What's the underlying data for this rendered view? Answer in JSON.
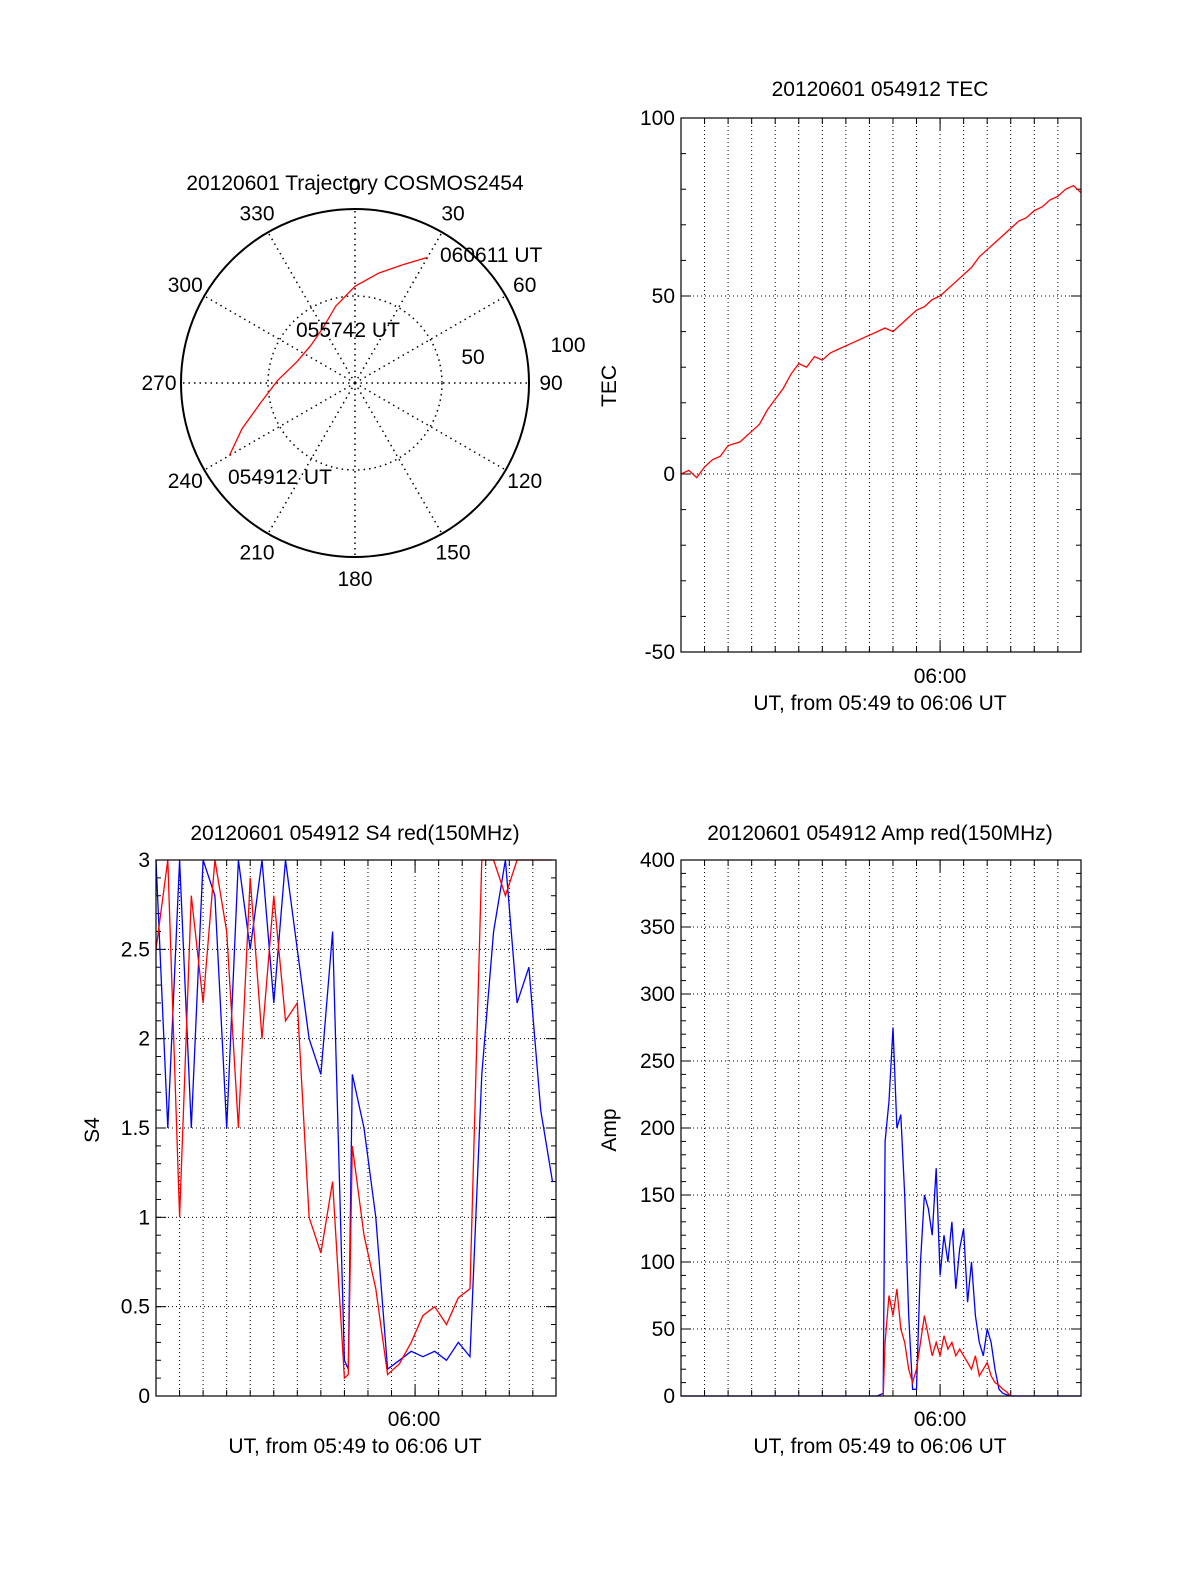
{
  "colors": {
    "red": "#ff0000",
    "blue": "#0000ff",
    "axis": "#000000",
    "grid": "#000000"
  },
  "chart_data": [
    {
      "type": "polar",
      "title": "20120601 Trajectory COSMOS2454",
      "azimuth_ticks": [
        0,
        30,
        60,
        90,
        120,
        150,
        180,
        210,
        240,
        270,
        300,
        330
      ],
      "radius_labels": [
        "50",
        "100"
      ],
      "series": [
        {
          "color": "red",
          "points": [
            {
              "az": 240,
              "el": 15
            },
            {
              "az": 248,
              "el": 27
            },
            {
              "az": 258,
              "el": 40
            },
            {
              "az": 272,
              "el": 50
            },
            {
              "az": 290,
              "el": 58
            },
            {
              "az": 310,
              "el": 60
            },
            {
              "az": 330,
              "el": 57
            },
            {
              "az": 346,
              "el": 49
            },
            {
              "az": 360,
              "el": 40
            },
            {
              "az": 372,
              "el": 32
            },
            {
              "az": 382,
              "el": 24
            },
            {
              "az": 390,
              "el": 15
            }
          ]
        }
      ],
      "annotations": [
        {
          "text": "060611 UT",
          "az": 30,
          "el": 15
        },
        {
          "text": "055742 UT",
          "az": 325,
          "el": 80
        },
        {
          "text": "054912 UT",
          "az": 240,
          "el": 15
        }
      ]
    },
    {
      "type": "line",
      "title": "20120601 054912 TEC",
      "xlabel": "UT, from 05:49 to 06:06 UT",
      "ylabel": "TEC",
      "xlim": [
        0,
        1019
      ],
      "ylim": [
        -50,
        100
      ],
      "yticks": [
        -50,
        0,
        50,
        100
      ],
      "xticks": [
        {
          "t": 660,
          "label": "06:00"
        }
      ],
      "grid": true,
      "series": [
        {
          "color": "red",
          "x": [
            0,
            20,
            40,
            60,
            80,
            100,
            120,
            150,
            180,
            200,
            220,
            240,
            260,
            280,
            300,
            320,
            340,
            360,
            380,
            400,
            420,
            440,
            460,
            480,
            500,
            520,
            540,
            560,
            580,
            600,
            620,
            640,
            660,
            680,
            700,
            720,
            740,
            760,
            780,
            800,
            820,
            840,
            860,
            880,
            900,
            920,
            940,
            960,
            980,
            1000,
            1019
          ],
          "y": [
            0,
            1,
            -1,
            2,
            4,
            5,
            8,
            9,
            12,
            14,
            18,
            21,
            24,
            28,
            31,
            30,
            33,
            32,
            34,
            35,
            36,
            37,
            38,
            39,
            40,
            41,
            40,
            42,
            44,
            46,
            47,
            49,
            50,
            52,
            54,
            56,
            58,
            61,
            63,
            65,
            67,
            69,
            71,
            72,
            74,
            75,
            77,
            78,
            80,
            81,
            79
          ]
        }
      ]
    },
    {
      "type": "line",
      "title": "20120601 054912 S4 red(150MHz)",
      "xlabel": "UT, from 05:49 to 06:06 UT",
      "ylabel": "S4",
      "xlim": [
        0,
        1019
      ],
      "ylim": [
        0,
        3
      ],
      "yticks": [
        "0",
        "0.5",
        "1",
        "1.5",
        "2",
        "2.5",
        "3"
      ],
      "xticks": [
        {
          "t": 660,
          "label": "06:00"
        }
      ],
      "grid": true,
      "series": [
        {
          "color": "blue",
          "x": [
            0,
            30,
            60,
            90,
            120,
            150,
            180,
            210,
            240,
            270,
            300,
            330,
            360,
            390,
            420,
            450,
            480,
            490,
            500,
            530,
            560,
            590,
            620,
            650,
            680,
            710,
            740,
            770,
            800,
            830,
            860,
            890,
            920,
            950,
            980,
            1010
          ],
          "y": [
            3,
            1.5,
            3,
            1.5,
            3,
            2.8,
            1.5,
            3,
            2.5,
            3,
            2.2,
            3,
            2.5,
            2.0,
            1.8,
            2.6,
            0.2,
            0.15,
            1.8,
            1.5,
            1.0,
            0.15,
            0.2,
            0.25,
            0.22,
            0.25,
            0.2,
            0.3,
            0.22,
            1.8,
            2.6,
            3.0,
            2.2,
            2.4,
            1.6,
            1.2
          ]
        },
        {
          "color": "red",
          "x": [
            0,
            30,
            60,
            90,
            120,
            150,
            180,
            210,
            240,
            270,
            300,
            330,
            360,
            390,
            420,
            450,
            480,
            490,
            500,
            530,
            560,
            590,
            620,
            650,
            680,
            710,
            740,
            770,
            800,
            830,
            860,
            890,
            920,
            950,
            980,
            1010
          ],
          "y": [
            2.5,
            3,
            1.0,
            2.8,
            2.2,
            3,
            2.6,
            1.5,
            2.9,
            2.0,
            2.8,
            2.1,
            2.2,
            1.0,
            0.8,
            1.2,
            0.1,
            0.12,
            1.4,
            0.9,
            0.6,
            0.12,
            0.18,
            0.3,
            0.45,
            0.5,
            0.4,
            0.55,
            0.6,
            3.0,
            3.0,
            2.8,
            3.0,
            3.0,
            3.0,
            3.0
          ]
        }
      ]
    },
    {
      "type": "line",
      "title": "20120601 054912 Amp red(150MHz)",
      "xlabel": "UT, from 05:49 to 06:06 UT",
      "ylabel": "Amp",
      "xlim": [
        0,
        1019
      ],
      "ylim": [
        0,
        400
      ],
      "yticks": [
        0,
        50,
        100,
        150,
        200,
        250,
        300,
        350,
        400
      ],
      "xticks": [
        {
          "t": 660,
          "label": "06:00"
        }
      ],
      "grid": true,
      "series": [
        {
          "color": "blue",
          "x": [
            0,
            100,
            200,
            300,
            400,
            500,
            515,
            520,
            530,
            540,
            550,
            560,
            570,
            580,
            590,
            600,
            610,
            620,
            630,
            640,
            650,
            660,
            670,
            680,
            690,
            700,
            710,
            720,
            730,
            740,
            750,
            760,
            770,
            780,
            790,
            800,
            810,
            820,
            830,
            840,
            860,
            900,
            1000,
            1019
          ],
          "y": [
            0,
            0,
            0,
            0,
            0,
            0,
            2,
            190,
            220,
            275,
            200,
            210,
            150,
            60,
            5,
            5,
            100,
            150,
            140,
            120,
            170,
            90,
            120,
            100,
            130,
            80,
            110,
            125,
            70,
            100,
            60,
            40,
            30,
            50,
            40,
            20,
            5,
            2,
            1,
            0,
            0,
            0,
            0,
            0
          ]
        },
        {
          "color": "red",
          "x": [
            515,
            520,
            530,
            540,
            550,
            560,
            570,
            580,
            590,
            600,
            610,
            620,
            630,
            640,
            650,
            660,
            670,
            680,
            690,
            700,
            710,
            720,
            730,
            740,
            750,
            760,
            770,
            780,
            790,
            800,
            810,
            820,
            830,
            840
          ],
          "y": [
            0,
            40,
            75,
            60,
            80,
            50,
            40,
            20,
            10,
            20,
            40,
            60,
            45,
            30,
            40,
            30,
            45,
            35,
            40,
            30,
            35,
            30,
            25,
            20,
            30,
            15,
            20,
            25,
            15,
            10,
            8,
            5,
            3,
            0
          ]
        }
      ]
    }
  ]
}
